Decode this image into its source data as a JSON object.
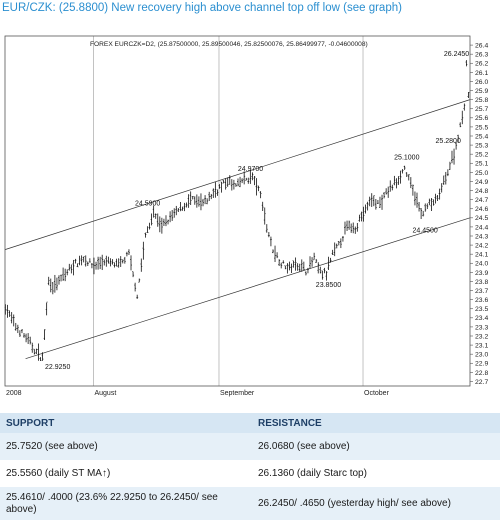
{
  "headline": "EUR/CZK: (25.8800) New recovery high above  channel top off low (see graph)",
  "chart_data": {
    "type": "line",
    "subtype": "ohlc-bars",
    "title": "FOREX EURCZK=D2, (25.87500000, 25.89500046, 25.82500076, 25.86499977, -0.04600008)",
    "xlabel": "",
    "ylabel": "",
    "ylim": [
      22.65,
      26.5
    ],
    "y_ticks": [
      22.7,
      22.8,
      22.9,
      23.0,
      23.1,
      23.2,
      23.3,
      23.4,
      23.5,
      23.6,
      23.7,
      23.8,
      23.9,
      24.0,
      24.1,
      24.2,
      24.3,
      24.4,
      24.5,
      24.6,
      24.7,
      24.8,
      24.9,
      25.0,
      25.1,
      25.2,
      25.3,
      25.4,
      25.5,
      25.6,
      25.7,
      25.8,
      25.9,
      26.0,
      26.1,
      26.2,
      26.3,
      26.4
    ],
    "x_labels": [
      {
        "label": "2008",
        "bar": 0
      },
      {
        "label": "August",
        "bar": 43
      },
      {
        "label": "September",
        "bar": 104
      },
      {
        "label": "October",
        "bar": 174
      }
    ],
    "bar_count": 226,
    "series": [
      {
        "values": [
          [
            0,
            23.52
          ],
          [
            5,
            23.3
          ],
          [
            10,
            23.18
          ],
          [
            14,
            23.05
          ],
          [
            18,
            22.95
          ],
          [
            21,
            23.8
          ],
          [
            24,
            23.75
          ],
          [
            28,
            23.85
          ],
          [
            33,
            23.98
          ],
          [
            38,
            24.05
          ],
          [
            43,
            23.97
          ],
          [
            47,
            24.02
          ],
          [
            52,
            24.0
          ],
          [
            55,
            23.97
          ],
          [
            60,
            24.1
          ],
          [
            64,
            23.65
          ],
          [
            68,
            24.3
          ],
          [
            72,
            24.55
          ],
          [
            76,
            24.4
          ],
          [
            80,
            24.5
          ],
          [
            85,
            24.6
          ],
          [
            90,
            24.7
          ],
          [
            96,
            24.65
          ],
          [
            102,
            24.8
          ],
          [
            108,
            24.9
          ],
          [
            112,
            24.85
          ],
          [
            116,
            24.92
          ],
          [
            120,
            24.95
          ],
          [
            124,
            24.75
          ],
          [
            127,
            24.4
          ],
          [
            130,
            24.15
          ],
          [
            134,
            24.0
          ],
          [
            138,
            23.95
          ],
          [
            142,
            24.0
          ],
          [
            146,
            23.92
          ],
          [
            150,
            24.05
          ],
          [
            153,
            23.9
          ],
          [
            156,
            23.88
          ],
          [
            159,
            24.1
          ],
          [
            162,
            24.2
          ],
          [
            166,
            24.4
          ],
          [
            170,
            24.4
          ],
          [
            174,
            24.55
          ],
          [
            178,
            24.7
          ],
          [
            182,
            24.65
          ],
          [
            186,
            24.8
          ],
          [
            190,
            24.9
          ],
          [
            194,
            25.05
          ],
          [
            198,
            24.8
          ],
          [
            202,
            24.55
          ],
          [
            206,
            24.65
          ],
          [
            210,
            24.7
          ],
          [
            214,
            24.95
          ],
          [
            218,
            25.2
          ],
          [
            221,
            25.5
          ],
          [
            223,
            25.75
          ],
          [
            224,
            26.2
          ],
          [
            225,
            25.86
          ]
        ]
      }
    ],
    "channel_lines": [
      {
        "name": "channel top",
        "from": [
          0,
          24.15
        ],
        "to": [
          226,
          25.8
        ]
      },
      {
        "name": "channel bottom",
        "from": [
          10,
          22.95
        ],
        "to": [
          226,
          24.5
        ]
      }
    ],
    "annotations": [
      {
        "text": "22.9250",
        "x": 18,
        "y": 22.925
      },
      {
        "text": "24.5900",
        "x": 70,
        "y": 24.59
      },
      {
        "text": "24.9700",
        "x": 120,
        "y": 24.97
      },
      {
        "text": "23.8500",
        "x": 153,
        "y": 23.85
      },
      {
        "text": "24.4500",
        "x": 200,
        "y": 24.45
      },
      {
        "text": "25.1000",
        "x": 194,
        "y": 25.1
      },
      {
        "text": "25.2800",
        "x": 218,
        "y": 25.28
      },
      {
        "text": "26.2450",
        "x": 224,
        "y": 26.245
      }
    ],
    "grid": "vertical-at-x-labels",
    "y_axis_position": "right",
    "colors": {
      "line": "#1a1a1a",
      "frame": "#555555"
    }
  },
  "table": {
    "headers": {
      "support": "SUPPORT",
      "resistance": "RESISTANCE"
    },
    "rows": [
      {
        "support": "25.7520 (see above)",
        "resistance": "26.0680 (see above)"
      },
      {
        "support": "25.5560 (daily ST MA↑)",
        "resistance": "26.1360 (daily Starc top)"
      },
      {
        "support": "25.4610/ .4000 (23.6% 22.9250 to 26.2450/ see above)",
        "resistance": "26.2450/ .4650 (yesterday high/ see above)"
      }
    ]
  }
}
